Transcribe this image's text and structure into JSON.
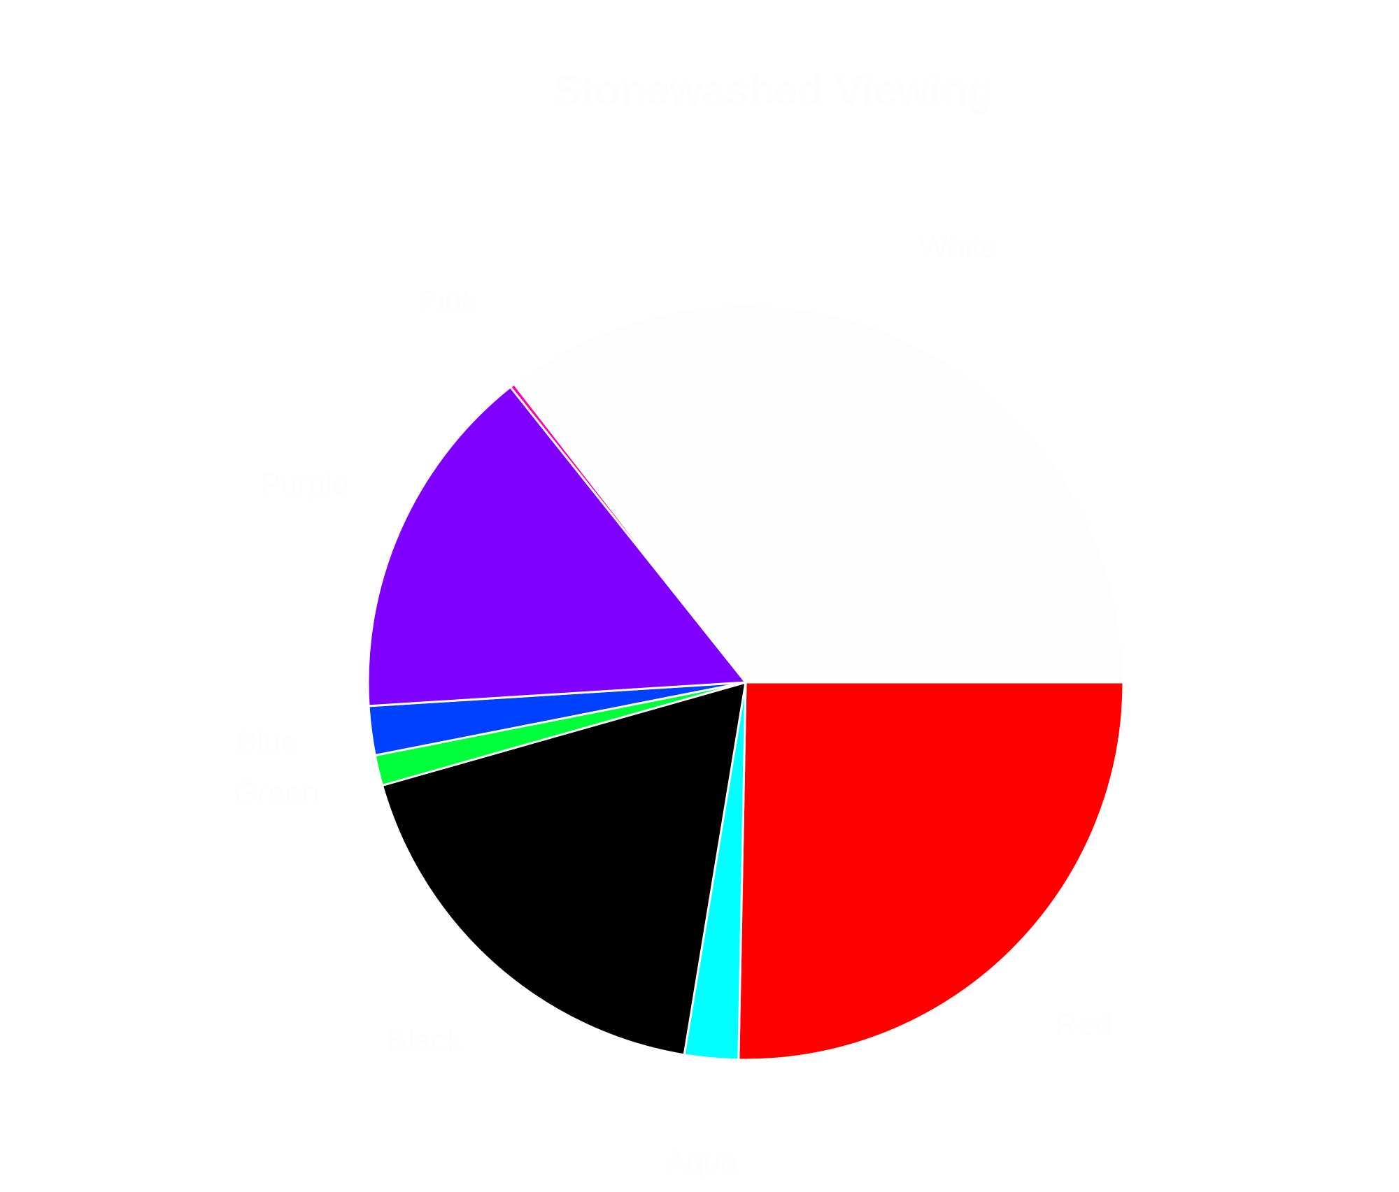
{
  "chart_data": {
    "type": "pie",
    "title": "Stonewashed Viewing",
    "slices": [
      {
        "label": "Red",
        "value": 25.3,
        "color": "#ff0000"
      },
      {
        "label": "Aqua",
        "value": 2.3,
        "color": "#00ffff"
      },
      {
        "label": "Black",
        "value": 18.0,
        "color": "#000000"
      },
      {
        "label": "Green",
        "value": 1.3,
        "color": "#00ff3b"
      },
      {
        "label": "Blue",
        "value": 2.1,
        "color": "#0040ff"
      },
      {
        "label": "Purple",
        "value": 15.3,
        "color": "#8000ff"
      },
      {
        "label": "Pink",
        "value": 0.2,
        "color": "#ff00aa"
      },
      {
        "label": "White",
        "value": 35.5,
        "color": "#fdfdfd"
      }
    ],
    "start_angle_deg": 0,
    "direction": "clockwise",
    "legend": "none"
  }
}
